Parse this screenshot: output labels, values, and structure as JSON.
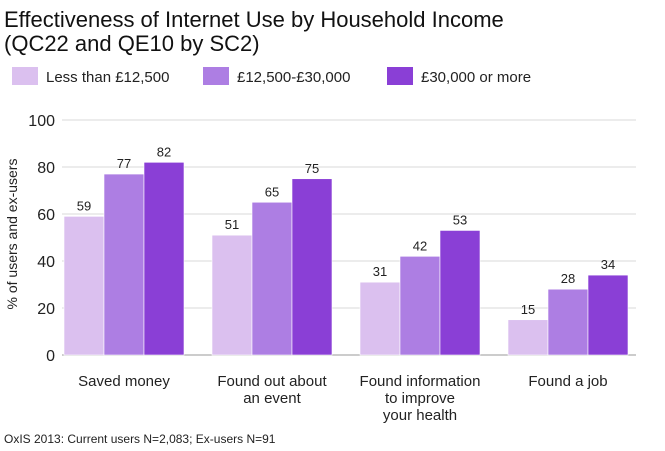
{
  "chart_data": {
    "type": "bar",
    "title_lines": [
      "Effectiveness of Internet Use by Household Income",
      "(QC22 and QE10 by SC2)"
    ],
    "ylabel": "% of users and ex-users",
    "ylim": [
      0,
      100
    ],
    "yticks": [
      0,
      20,
      40,
      60,
      80,
      100
    ],
    "grid": true,
    "legend_position": "top",
    "categories": [
      [
        "Saved money"
      ],
      [
        "Found out about",
        "an event"
      ],
      [
        "Found information",
        "to improve",
        "your health"
      ],
      [
        "Found a job"
      ]
    ],
    "series": [
      {
        "name": "Less than £12,500",
        "color": "#dbc0ef",
        "values": [
          59,
          51,
          31,
          15
        ]
      },
      {
        "name": "£12,500-£30,000",
        "color": "#ad7ee3",
        "values": [
          77,
          65,
          42,
          28
        ]
      },
      {
        "name": "£30,000 or more",
        "color": "#8a3fd6",
        "values": [
          82,
          75,
          53,
          34
        ]
      }
    ],
    "footnote": "OxIS 2013: Current users N=2,083; Ex-users N=91"
  }
}
